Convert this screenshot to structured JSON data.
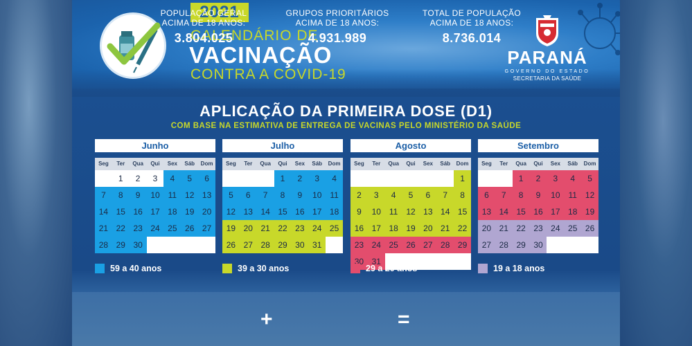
{
  "header": {
    "year": "2021",
    "title_line1": "CALENDÁRIO DE",
    "title_line2": "VACINAÇÃO",
    "title_line3": "CONTRA A COVID-19"
  },
  "brand": {
    "name": "PARANÁ",
    "government": "GOVERNO DO ESTADO",
    "department": "SECRETARIA DA SAÚDE"
  },
  "heading": "APLICAÇÃO DA PRIMEIRA DOSE (D1)",
  "subheading": "COM BASE NA ESTIMATIVA DE ENTREGA DE VACINAS PELO MINISTÉRIO DA SAÚDE",
  "weekdays": [
    "Seg",
    "Ter",
    "Qua",
    "Qui",
    "Sex",
    "Sáb",
    "Dom"
  ],
  "colors": {
    "blue": "#1aa0e4",
    "green": "#c8d82a",
    "red": "#e34d6d",
    "purple": "#b0a6d1",
    "empty": "#ffffff"
  },
  "months": [
    {
      "name": "Junho",
      "cells": [
        [
          "",
          "w"
        ],
        [
          "1",
          "w"
        ],
        [
          "2",
          "w"
        ],
        [
          "3",
          "w"
        ],
        [
          "4",
          "b"
        ],
        [
          "5",
          "b"
        ],
        [
          "6",
          "b"
        ],
        [
          "7",
          "b"
        ],
        [
          "8",
          "b"
        ],
        [
          "9",
          "b"
        ],
        [
          "10",
          "b"
        ],
        [
          "11",
          "b"
        ],
        [
          "12",
          "b"
        ],
        [
          "13",
          "b"
        ],
        [
          "14",
          "b"
        ],
        [
          "15",
          "b"
        ],
        [
          "16",
          "b"
        ],
        [
          "17",
          "b"
        ],
        [
          "18",
          "b"
        ],
        [
          "19",
          "b"
        ],
        [
          "20",
          "b"
        ],
        [
          "21",
          "b"
        ],
        [
          "22",
          "b"
        ],
        [
          "23",
          "b"
        ],
        [
          "24",
          "b"
        ],
        [
          "25",
          "b"
        ],
        [
          "26",
          "b"
        ],
        [
          "27",
          "b"
        ],
        [
          "28",
          "b"
        ],
        [
          "29",
          "b"
        ],
        [
          "30",
          "b"
        ],
        [
          "",
          "w"
        ],
        [
          "",
          "w"
        ],
        [
          "",
          "w"
        ],
        [
          "",
          "w"
        ]
      ]
    },
    {
      "name": "Julho",
      "cells": [
        [
          "",
          "w"
        ],
        [
          "",
          "w"
        ],
        [
          "",
          "w"
        ],
        [
          "1",
          "b"
        ],
        [
          "2",
          "b"
        ],
        [
          "3",
          "b"
        ],
        [
          "4",
          "b"
        ],
        [
          "5",
          "b"
        ],
        [
          "6",
          "b"
        ],
        [
          "7",
          "b"
        ],
        [
          "8",
          "b"
        ],
        [
          "9",
          "b"
        ],
        [
          "10",
          "b"
        ],
        [
          "11",
          "b"
        ],
        [
          "12",
          "b"
        ],
        [
          "13",
          "b"
        ],
        [
          "14",
          "b"
        ],
        [
          "15",
          "b"
        ],
        [
          "16",
          "b"
        ],
        [
          "17",
          "b"
        ],
        [
          "18",
          "b"
        ],
        [
          "19",
          "g"
        ],
        [
          "20",
          "g"
        ],
        [
          "21",
          "g"
        ],
        [
          "22",
          "g"
        ],
        [
          "23",
          "g"
        ],
        [
          "24",
          "g"
        ],
        [
          "25",
          "g"
        ],
        [
          "26",
          "g"
        ],
        [
          "27",
          "g"
        ],
        [
          "28",
          "g"
        ],
        [
          "29",
          "g"
        ],
        [
          "30",
          "g"
        ],
        [
          "31",
          "g"
        ],
        [
          "",
          "w"
        ]
      ]
    },
    {
      "name": "Agosto",
      "cells": [
        [
          "",
          "w"
        ],
        [
          "",
          "w"
        ],
        [
          "",
          "w"
        ],
        [
          "",
          "w"
        ],
        [
          "",
          "w"
        ],
        [
          "",
          "w"
        ],
        [
          "1",
          "g"
        ],
        [
          "2",
          "g"
        ],
        [
          "3",
          "g"
        ],
        [
          "4",
          "g"
        ],
        [
          "5",
          "g"
        ],
        [
          "6",
          "g"
        ],
        [
          "7",
          "g"
        ],
        [
          "8",
          "g"
        ],
        [
          "9",
          "g"
        ],
        [
          "10",
          "g"
        ],
        [
          "11",
          "g"
        ],
        [
          "12",
          "g"
        ],
        [
          "13",
          "g"
        ],
        [
          "14",
          "g"
        ],
        [
          "15",
          "g"
        ],
        [
          "16",
          "g"
        ],
        [
          "17",
          "g"
        ],
        [
          "18",
          "g"
        ],
        [
          "19",
          "g"
        ],
        [
          "20",
          "g"
        ],
        [
          "21",
          "g"
        ],
        [
          "22",
          "g"
        ],
        [
          "23",
          "r"
        ],
        [
          "24",
          "r"
        ],
        [
          "25",
          "r"
        ],
        [
          "26",
          "r"
        ],
        [
          "27",
          "r"
        ],
        [
          "28",
          "r"
        ],
        [
          "29",
          "r"
        ],
        [
          "30",
          "r"
        ],
        [
          "31",
          "r"
        ],
        [
          "",
          "w"
        ],
        [
          "",
          "w"
        ],
        [
          "",
          "w"
        ],
        [
          "",
          "w"
        ],
        [
          "",
          "w"
        ]
      ]
    },
    {
      "name": "Setembro",
      "cells": [
        [
          "",
          "w"
        ],
        [
          "",
          "w"
        ],
        [
          "1",
          "r"
        ],
        [
          "2",
          "r"
        ],
        [
          "3",
          "r"
        ],
        [
          "4",
          "r"
        ],
        [
          "5",
          "r"
        ],
        [
          "6",
          "r"
        ],
        [
          "7",
          "r"
        ],
        [
          "8",
          "r"
        ],
        [
          "9",
          "r"
        ],
        [
          "10",
          "r"
        ],
        [
          "11",
          "r"
        ],
        [
          "12",
          "r"
        ],
        [
          "13",
          "r"
        ],
        [
          "14",
          "r"
        ],
        [
          "15",
          "r"
        ],
        [
          "16",
          "r"
        ],
        [
          "17",
          "r"
        ],
        [
          "18",
          "r"
        ],
        [
          "19",
          "r"
        ],
        [
          "20",
          "p"
        ],
        [
          "21",
          "p"
        ],
        [
          "22",
          "p"
        ],
        [
          "23",
          "p"
        ],
        [
          "24",
          "p"
        ],
        [
          "25",
          "p"
        ],
        [
          "26",
          "p"
        ],
        [
          "27",
          "p"
        ],
        [
          "28",
          "p"
        ],
        [
          "29",
          "p"
        ],
        [
          "30",
          "p"
        ],
        [
          "",
          "w"
        ],
        [
          "",
          "w"
        ],
        [
          "",
          "w"
        ]
      ]
    }
  ],
  "legend": [
    {
      "label": "59 a 40 anos",
      "color": "#1aa0e4"
    },
    {
      "label": "39 a 30 anos",
      "color": "#c8d82a"
    },
    {
      "label": "29 a 20 anos",
      "color": "#e34d6d"
    },
    {
      "label": "19 a 18 anos",
      "color": "#b0a6d1"
    }
  ],
  "stats": {
    "general": {
      "line1": "POPULAÇÃO GERAL",
      "line2": "ACIMA DE 18 ANOS:",
      "value": "3.804.025"
    },
    "priority": {
      "line1": "GRUPOS PRIORITÁRIOS",
      "line2": "ACIMA DE 18 ANOS:",
      "value": "4.931.989"
    },
    "total": {
      "line1": "TOTAL DE POPULAÇÃO",
      "line2": "ACIMA DE 18 ANOS:",
      "value": "8.736.014"
    },
    "plus": "+",
    "equals": "="
  }
}
